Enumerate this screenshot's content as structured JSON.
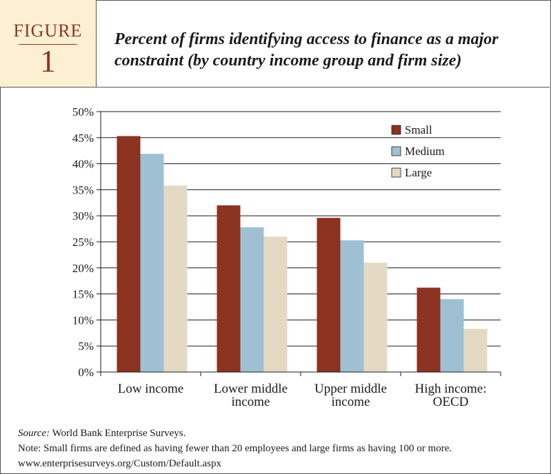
{
  "figure": {
    "word": "FIGURE",
    "number": "1",
    "title": "Percent of firms identifying access to finance as a major constraint (by country income group and firm size)"
  },
  "chart_data": {
    "type": "bar",
    "title": "",
    "xlabel": "",
    "ylabel": "",
    "categories": [
      [
        "Low income"
      ],
      [
        "Lower middle",
        "income"
      ],
      [
        "Upper middle",
        "income"
      ],
      [
        "High income:",
        "OECD"
      ]
    ],
    "series": [
      {
        "name": "Small",
        "color": "#8b3220",
        "values": [
          45.3,
          32.0,
          29.6,
          16.2
        ]
      },
      {
        "name": "Medium",
        "color": "#9fc0d3",
        "values": [
          41.9,
          27.8,
          25.3,
          14.0
        ]
      },
      {
        "name": "Large",
        "color": "#e4dac3",
        "values": [
          35.8,
          26.0,
          21.0,
          8.3
        ]
      }
    ],
    "ylim": [
      0,
      50
    ],
    "yticks": [
      "0%",
      "5%",
      "10%",
      "15%",
      "20%",
      "25%",
      "30%",
      "35%",
      "40%",
      "45%",
      "50%"
    ],
    "grid": true,
    "legend_position": "top-right"
  },
  "notes": {
    "source_label": "Source:",
    "source_text": " World Bank Enterprise Surveys.",
    "note": "Note: Small firms are defined as having fewer than 20 employees and large firms as having 100 or more.",
    "url": "www.enterprisesurveys.org/Custom/Default.aspx"
  }
}
